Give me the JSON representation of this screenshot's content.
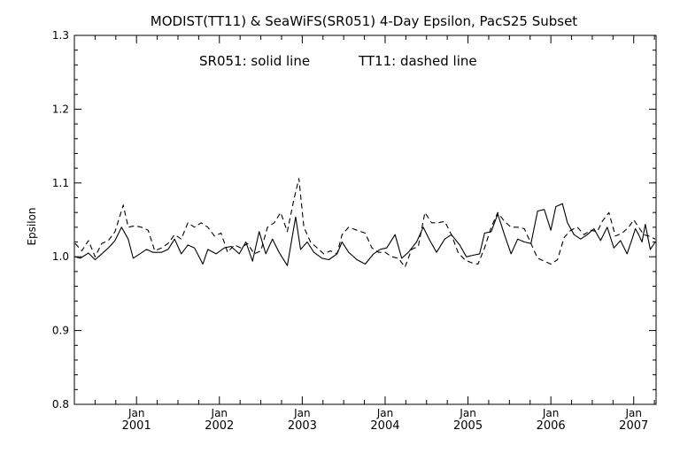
{
  "chart_data": {
    "type": "line",
    "title": "MODIST(TT11) & SeaWiFS(SR051) 4-Day Epsilon, PacS25 Subset",
    "annotation_solid": "SR051: solid line",
    "annotation_dashed": "TT11: dashed line",
    "ylabel": "Epsilon",
    "xlabel": "",
    "ylim": [
      0.8,
      1.3
    ],
    "xlim": [
      2000.25,
      2007.27
    ],
    "yticks": [
      "0.8",
      "0.9",
      "1.0",
      "1.1",
      "1.2",
      "1.3"
    ],
    "xticks": [
      {
        "month": "Jan",
        "year": "2001",
        "x": 2001.0
      },
      {
        "month": "Jan",
        "year": "2002",
        "x": 2002.0
      },
      {
        "month": "Jan",
        "year": "2003",
        "x": 2003.0
      },
      {
        "month": "Jan",
        "year": "2004",
        "x": 2004.0
      },
      {
        "month": "Jan",
        "year": "2005",
        "x": 2005.0
      },
      {
        "month": "Jan",
        "year": "2006",
        "x": 2006.0
      },
      {
        "month": "Jan",
        "year": "2007",
        "x": 2007.0
      }
    ],
    "grid": false,
    "series": [
      {
        "name": "SR051",
        "style": "solid",
        "points": [
          [
            2000.26,
            1.0
          ],
          [
            2000.32,
            0.998
          ],
          [
            2000.42,
            1.005
          ],
          [
            2000.5,
            0.996
          ],
          [
            2000.58,
            1.004
          ],
          [
            2000.66,
            1.012
          ],
          [
            2000.74,
            1.022
          ],
          [
            2000.82,
            1.04
          ],
          [
            2000.9,
            1.024
          ],
          [
            2000.96,
            0.998
          ],
          [
            2001.04,
            1.004
          ],
          [
            2001.12,
            1.01
          ],
          [
            2001.2,
            1.006
          ],
          [
            2001.3,
            1.006
          ],
          [
            2001.38,
            1.01
          ],
          [
            2001.46,
            1.024
          ],
          [
            2001.54,
            1.004
          ],
          [
            2001.62,
            1.016
          ],
          [
            2001.7,
            1.012
          ],
          [
            2001.8,
            0.99
          ],
          [
            2001.86,
            1.01
          ],
          [
            2001.96,
            1.004
          ],
          [
            2002.06,
            1.012
          ],
          [
            2002.14,
            1.014
          ],
          [
            2002.24,
            1.004
          ],
          [
            2002.32,
            1.02
          ],
          [
            2002.4,
            0.994
          ],
          [
            2002.48,
            1.034
          ],
          [
            2002.56,
            1.004
          ],
          [
            2002.64,
            1.024
          ],
          [
            2002.72,
            1.006
          ],
          [
            2002.82,
            0.988
          ],
          [
            2002.92,
            1.054
          ],
          [
            2002.98,
            1.01
          ],
          [
            2003.06,
            1.02
          ],
          [
            2003.14,
            1.006
          ],
          [
            2003.24,
            0.998
          ],
          [
            2003.32,
            0.996
          ],
          [
            2003.42,
            1.004
          ],
          [
            2003.48,
            1.02
          ],
          [
            2003.56,
            1.006
          ],
          [
            2003.66,
            0.996
          ],
          [
            2003.76,
            0.99
          ],
          [
            2003.86,
            1.004
          ],
          [
            2003.94,
            1.01
          ],
          [
            2004.02,
            1.012
          ],
          [
            2004.12,
            1.03
          ],
          [
            2004.2,
            0.998
          ],
          [
            2004.28,
            1.006
          ],
          [
            2004.38,
            1.02
          ],
          [
            2004.46,
            1.04
          ],
          [
            2004.54,
            1.022
          ],
          [
            2004.62,
            1.006
          ],
          [
            2004.72,
            1.024
          ],
          [
            2004.8,
            1.03
          ],
          [
            2004.9,
            1.016
          ],
          [
            2004.98,
            1.0
          ],
          [
            2005.06,
            1.002
          ],
          [
            2005.14,
            1.004
          ],
          [
            2005.2,
            1.032
          ],
          [
            2005.28,
            1.034
          ],
          [
            2005.36,
            1.058
          ],
          [
            2005.44,
            1.03
          ],
          [
            2005.52,
            1.004
          ],
          [
            2005.6,
            1.024
          ],
          [
            2005.68,
            1.02
          ],
          [
            2005.76,
            1.018
          ],
          [
            2005.84,
            1.062
          ],
          [
            2005.92,
            1.064
          ],
          [
            2006.0,
            1.036
          ],
          [
            2006.06,
            1.068
          ],
          [
            2006.14,
            1.072
          ],
          [
            2006.2,
            1.046
          ],
          [
            2006.28,
            1.03
          ],
          [
            2006.36,
            1.024
          ],
          [
            2006.44,
            1.03
          ],
          [
            2006.52,
            1.038
          ],
          [
            2006.6,
            1.022
          ],
          [
            2006.68,
            1.04
          ],
          [
            2006.76,
            1.012
          ],
          [
            2006.84,
            1.022
          ],
          [
            2006.92,
            1.004
          ],
          [
            2006.98,
            1.024
          ],
          [
            2007.02,
            1.038
          ],
          [
            2007.06,
            1.03
          ],
          [
            2007.1,
            1.02
          ],
          [
            2007.14,
            1.044
          ],
          [
            2007.2,
            1.01
          ],
          [
            2007.26,
            1.02
          ]
        ]
      },
      {
        "name": "TT11",
        "style": "dashed",
        "points": [
          [
            2000.26,
            1.018
          ],
          [
            2000.34,
            1.008
          ],
          [
            2000.42,
            1.022
          ],
          [
            2000.5,
            1.0
          ],
          [
            2000.58,
            1.018
          ],
          [
            2000.66,
            1.022
          ],
          [
            2000.74,
            1.034
          ],
          [
            2000.84,
            1.07
          ],
          [
            2000.9,
            1.04
          ],
          [
            2000.98,
            1.042
          ],
          [
            2001.06,
            1.04
          ],
          [
            2001.14,
            1.036
          ],
          [
            2001.22,
            1.008
          ],
          [
            2001.3,
            1.012
          ],
          [
            2001.38,
            1.018
          ],
          [
            2001.46,
            1.03
          ],
          [
            2001.54,
            1.024
          ],
          [
            2001.62,
            1.046
          ],
          [
            2001.7,
            1.04
          ],
          [
            2001.78,
            1.046
          ],
          [
            2001.86,
            1.04
          ],
          [
            2001.94,
            1.028
          ],
          [
            2002.02,
            1.032
          ],
          [
            2002.1,
            1.006
          ],
          [
            2002.18,
            1.016
          ],
          [
            2002.26,
            1.012
          ],
          [
            2002.34,
            1.018
          ],
          [
            2002.42,
            1.004
          ],
          [
            2002.5,
            1.008
          ],
          [
            2002.58,
            1.04
          ],
          [
            2002.66,
            1.046
          ],
          [
            2002.74,
            1.06
          ],
          [
            2002.82,
            1.034
          ],
          [
            2002.9,
            1.078
          ],
          [
            2002.96,
            1.106
          ],
          [
            2003.02,
            1.04
          ],
          [
            2003.1,
            1.02
          ],
          [
            2003.18,
            1.012
          ],
          [
            2003.26,
            1.004
          ],
          [
            2003.34,
            1.008
          ],
          [
            2003.42,
            1.004
          ],
          [
            2003.48,
            1.03
          ],
          [
            2003.56,
            1.04
          ],
          [
            2003.66,
            1.036
          ],
          [
            2003.76,
            1.032
          ],
          [
            2003.84,
            1.012
          ],
          [
            2003.92,
            1.006
          ],
          [
            2004.0,
            1.006
          ],
          [
            2004.08,
            1.0
          ],
          [
            2004.16,
            0.998
          ],
          [
            2004.24,
            0.986
          ],
          [
            2004.32,
            1.01
          ],
          [
            2004.4,
            1.014
          ],
          [
            2004.48,
            1.06
          ],
          [
            2004.56,
            1.046
          ],
          [
            2004.64,
            1.046
          ],
          [
            2004.72,
            1.048
          ],
          [
            2004.8,
            1.03
          ],
          [
            2004.88,
            1.006
          ],
          [
            2004.96,
            0.996
          ],
          [
            2005.04,
            0.992
          ],
          [
            2005.12,
            0.99
          ],
          [
            2005.2,
            1.012
          ],
          [
            2005.28,
            1.04
          ],
          [
            2005.36,
            1.06
          ],
          [
            2005.44,
            1.048
          ],
          [
            2005.52,
            1.04
          ],
          [
            2005.6,
            1.04
          ],
          [
            2005.68,
            1.038
          ],
          [
            2005.76,
            1.018
          ],
          [
            2005.84,
            0.998
          ],
          [
            2005.92,
            0.994
          ],
          [
            2006.0,
            0.99
          ],
          [
            2006.08,
            0.996
          ],
          [
            2006.16,
            1.026
          ],
          [
            2006.24,
            1.036
          ],
          [
            2006.32,
            1.04
          ],
          [
            2006.4,
            1.03
          ],
          [
            2006.48,
            1.036
          ],
          [
            2006.56,
            1.034
          ],
          [
            2006.62,
            1.048
          ],
          [
            2006.7,
            1.06
          ],
          [
            2006.78,
            1.028
          ],
          [
            2006.86,
            1.032
          ],
          [
            2006.94,
            1.04
          ],
          [
            2007.0,
            1.05
          ],
          [
            2007.06,
            1.04
          ],
          [
            2007.12,
            1.03
          ],
          [
            2007.18,
            1.028
          ],
          [
            2007.26,
            1.024
          ]
        ]
      }
    ]
  }
}
